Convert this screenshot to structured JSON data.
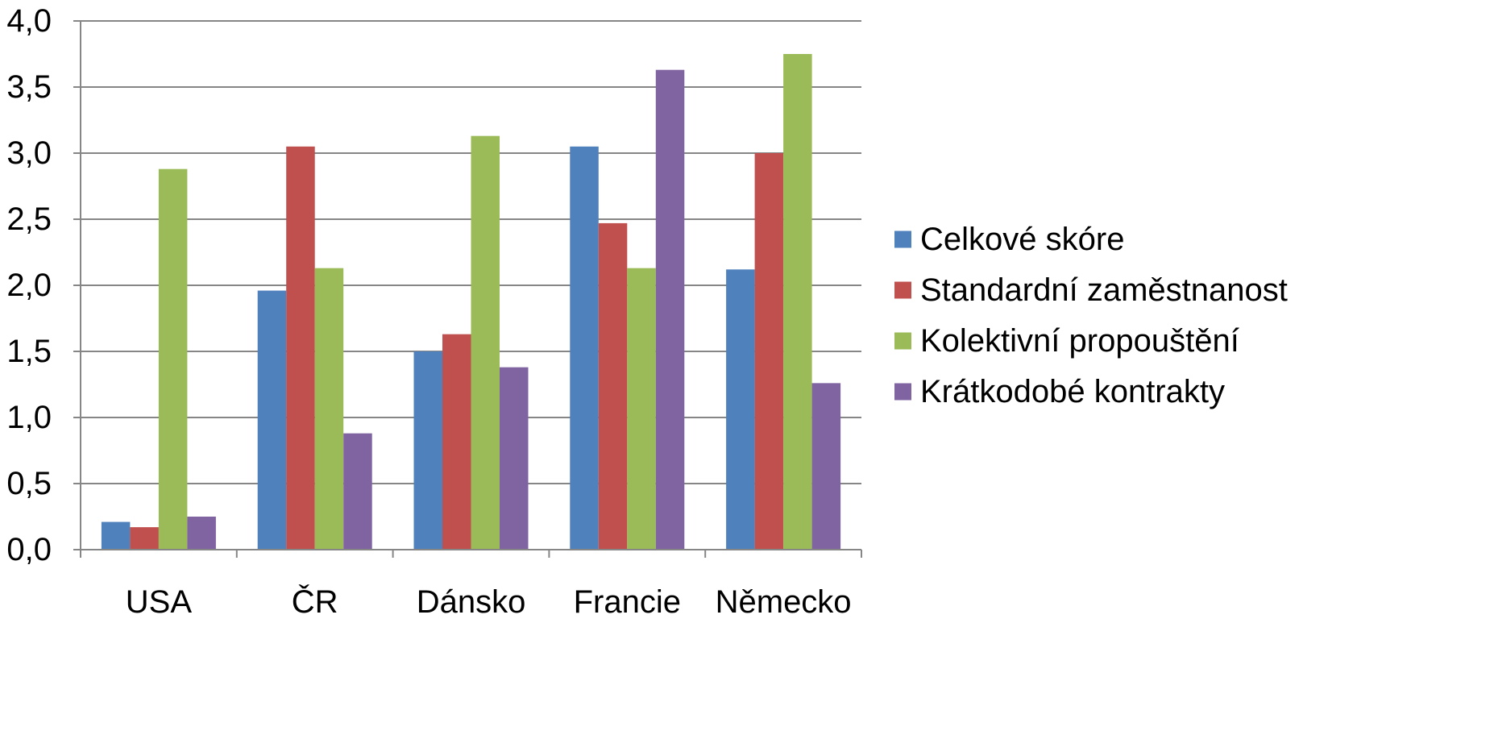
{
  "chart_data": {
    "type": "bar",
    "title": "",
    "xlabel": "",
    "ylabel": "",
    "categories": [
      "USA",
      "ČR",
      "Dánsko",
      "Francie",
      "Německo"
    ],
    "ylim": [
      0,
      4
    ],
    "ytick_values": [
      0,
      0.5,
      1,
      1.5,
      2,
      2.5,
      3,
      3.5,
      4
    ],
    "ytick_labels": [
      "0,0",
      "0,5",
      "1,0",
      "1,5",
      "2,0",
      "2,5",
      "3,0",
      "3,5",
      "4,0"
    ],
    "grid": true,
    "legend_position": "right",
    "series": [
      {
        "name": "Celkové skóre",
        "color": "#4F81BD",
        "values": [
          0.21,
          1.96,
          1.5,
          3.05,
          2.12
        ]
      },
      {
        "name": "Standardní zaměstnanost",
        "color": "#C0504D",
        "values": [
          0.17,
          3.05,
          1.63,
          2.47,
          3.0
        ]
      },
      {
        "name": "Kolektivní propouštění",
        "color": "#9BBB59",
        "values": [
          2.88,
          2.13,
          3.13,
          2.13,
          3.75
        ]
      },
      {
        "name": "Krátkodobé kontrakty",
        "color": "#8064A2",
        "values": [
          0.25,
          0.88,
          1.38,
          3.63,
          1.26
        ]
      }
    ]
  }
}
